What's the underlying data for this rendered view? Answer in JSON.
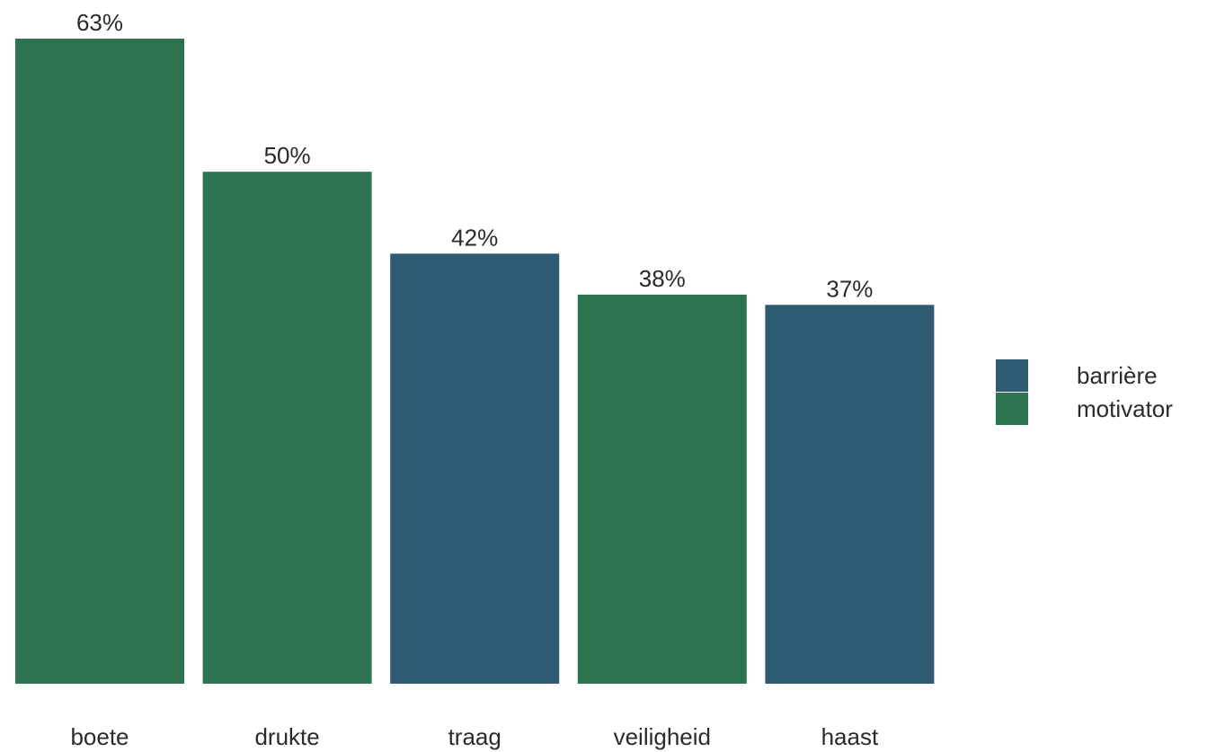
{
  "chart_data": {
    "type": "bar",
    "categories": [
      "boete",
      "drukte",
      "traag",
      "veiligheid",
      "haast"
    ],
    "values": [
      63,
      50,
      42,
      38,
      37
    ],
    "value_labels": [
      "63%",
      "50%",
      "42%",
      "38%",
      "37%"
    ],
    "groups": [
      "motivator",
      "motivator",
      "barrière",
      "motivator",
      "barrière"
    ],
    "title": "",
    "xlabel": "",
    "ylabel": "",
    "ylim": [
      0,
      63
    ],
    "grid": false,
    "legend": {
      "placement": "right",
      "entries": [
        {
          "key": "barrière",
          "label": "barrière",
          "color": "#2e5a72"
        },
        {
          "key": "motivator",
          "label": "motivator",
          "color": "#2e7350"
        }
      ]
    }
  }
}
